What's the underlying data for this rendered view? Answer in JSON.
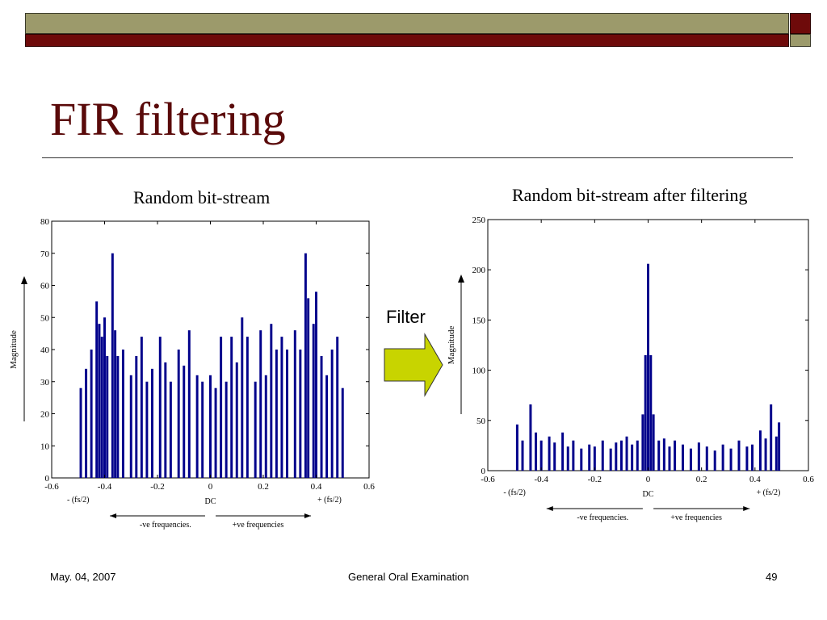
{
  "slide": {
    "title": "FIR filtering",
    "filter_label": "Filter",
    "footer_date": "May. 04, 2007",
    "footer_center": "General Oral Examination",
    "footer_page": "49",
    "colors": {
      "bar_fill": "#00008b",
      "title": "#5a0a0a",
      "header_olive": "#9c9a6b",
      "header_maroon": "#6e0a0a",
      "arrow_fill": "#c8d400"
    }
  },
  "chart_data": [
    {
      "type": "bar",
      "title": "Random bit-stream",
      "ylabel": "Magnitude",
      "xlabel": "DC",
      "xlim": [
        -0.6,
        0.6
      ],
      "ylim": [
        0,
        80
      ],
      "xticks": [
        "-0.6",
        "-0.4",
        "-0.2",
        "0",
        "0.2",
        "0.4",
        "0.6"
      ],
      "yticks": [
        "0",
        "10",
        "20",
        "30",
        "40",
        "50",
        "60",
        "70",
        "80"
      ],
      "annotations": {
        "left_edge": "- (fs/2)",
        "right_edge": "+ (fs/2)",
        "neg_freq": "-ve frequencies.",
        "pos_freq": "+ve frequencies"
      },
      "x": [
        -0.49,
        -0.47,
        -0.45,
        -0.43,
        -0.42,
        -0.41,
        -0.4,
        -0.39,
        -0.37,
        -0.36,
        -0.35,
        -0.33,
        -0.3,
        -0.28,
        -0.26,
        -0.24,
        -0.22,
        -0.19,
        -0.17,
        -0.15,
        -0.12,
        -0.1,
        -0.08,
        -0.05,
        -0.03,
        0,
        0.02,
        0.04,
        0.06,
        0.08,
        0.1,
        0.12,
        0.14,
        0.17,
        0.19,
        0.21,
        0.23,
        0.25,
        0.27,
        0.29,
        0.32,
        0.34,
        0.36,
        0.37,
        0.39,
        0.4,
        0.42,
        0.44,
        0.46,
        0.48,
        0.5
      ],
      "values": [
        28,
        34,
        40,
        55,
        48,
        44,
        50,
        38,
        70,
        46,
        38,
        40,
        32,
        38,
        44,
        30,
        34,
        44,
        36,
        30,
        40,
        35,
        46,
        32,
        30,
        32,
        28,
        44,
        30,
        44,
        36,
        50,
        44,
        30,
        46,
        32,
        48,
        40,
        44,
        40,
        46,
        40,
        70,
        56,
        48,
        58,
        38,
        32,
        40,
        44,
        28
      ]
    },
    {
      "type": "bar",
      "title": "Random bit-stream after filtering",
      "ylabel": "Magnitude",
      "xlabel": "DC",
      "xlim": [
        -0.6,
        0.6
      ],
      "ylim": [
        0,
        250
      ],
      "xticks": [
        "-0.6",
        "-0.4",
        "-0.2",
        "0",
        "0.2",
        "0.4",
        "0.6"
      ],
      "yticks": [
        "0",
        "50",
        "100",
        "150",
        "200",
        "250"
      ],
      "annotations": {
        "left_edge": "- (fs/2)",
        "right_edge": "+ (fs/2)",
        "neg_freq": "-ve frequencies.",
        "pos_freq": "+ve frequencies"
      },
      "x": [
        -0.49,
        -0.47,
        -0.44,
        -0.42,
        -0.4,
        -0.37,
        -0.35,
        -0.32,
        -0.3,
        -0.28,
        -0.25,
        -0.22,
        -0.2,
        -0.17,
        -0.14,
        -0.12,
        -0.1,
        -0.08,
        -0.06,
        -0.04,
        -0.02,
        -0.01,
        0,
        0.01,
        0.02,
        0.04,
        0.06,
        0.08,
        0.1,
        0.13,
        0.16,
        0.19,
        0.22,
        0.25,
        0.28,
        0.31,
        0.34,
        0.37,
        0.39,
        0.42,
        0.44,
        0.46,
        0.48,
        0.49
      ],
      "values": [
        46,
        30,
        66,
        38,
        30,
        34,
        28,
        38,
        24,
        30,
        22,
        26,
        24,
        30,
        22,
        28,
        30,
        34,
        26,
        30,
        56,
        115,
        206,
        115,
        56,
        30,
        32,
        24,
        30,
        26,
        22,
        28,
        24,
        20,
        26,
        22,
        30,
        24,
        26,
        40,
        32,
        66,
        34,
        48
      ]
    }
  ]
}
